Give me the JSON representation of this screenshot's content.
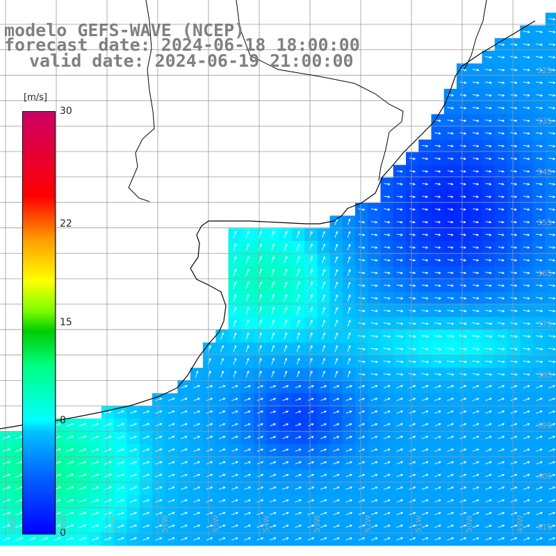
{
  "title": {
    "model": "modelo GEFS-WAVE (NCEP)",
    "forecast": "forecast date: 2024-06-18 18:00:00",
    "valid": "valid date: 2024-06-19 21:00:00"
  },
  "colorbar": {
    "units": "[m/s]",
    "ticks": [
      {
        "value": 30,
        "label": "30"
      },
      {
        "value": 22,
        "label": "22"
      },
      {
        "value": 15,
        "label": "15"
      },
      {
        "value": 8,
        "label": "8"
      },
      {
        "value": 0,
        "label": "0"
      }
    ]
  },
  "lat_labels": [
    "32S",
    "33S",
    "34S",
    "35S",
    "36S",
    "37S",
    "38S",
    "39S",
    "40S",
    "41S"
  ],
  "lon_labels": [
    "59W",
    "58W",
    "57W",
    "56W",
    "55W",
    "54W",
    "53W",
    "52W",
    "51W",
    "50W",
    "49W"
  ],
  "colors": {
    "land": "#ffffff",
    "coastline": "#000000",
    "grid": "#9a9a9a",
    "arrow": "#ffffff",
    "low_speed": "#0000ff",
    "mid_speed": "#00ffff",
    "high_speed": "#00cc00"
  }
}
